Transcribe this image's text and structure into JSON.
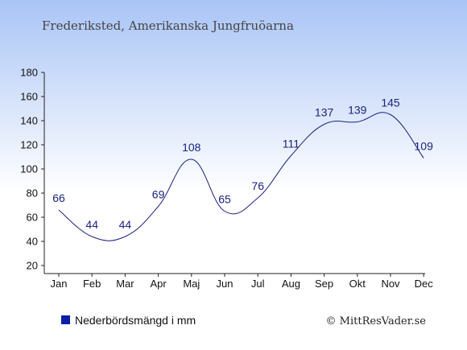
{
  "chart_data": {
    "type": "line",
    "title": "Frederiksted, Amerikanska Jungfruöarna",
    "categories": [
      "Jan",
      "Feb",
      "Mar",
      "Apr",
      "Maj",
      "Jun",
      "Jul",
      "Aug",
      "Sep",
      "Okt",
      "Nov",
      "Dec"
    ],
    "series": [
      {
        "name": "Nederbördsmängd i mm",
        "values": [
          66,
          44,
          44,
          69,
          108,
          65,
          76,
          111,
          137,
          139,
          145,
          109
        ]
      }
    ],
    "ylim": [
      20,
      180
    ],
    "yticks": [
      20,
      40,
      60,
      80,
      100,
      120,
      140,
      160,
      180
    ],
    "grid": false,
    "legend_position": "bottom-left",
    "line_color": "#1a237e",
    "legend_color": "#0b1fa8",
    "background_top": "#a9c4f6",
    "background_bottom": "#ffffff"
  },
  "footer": {
    "credit": "© MittResVader.se"
  }
}
